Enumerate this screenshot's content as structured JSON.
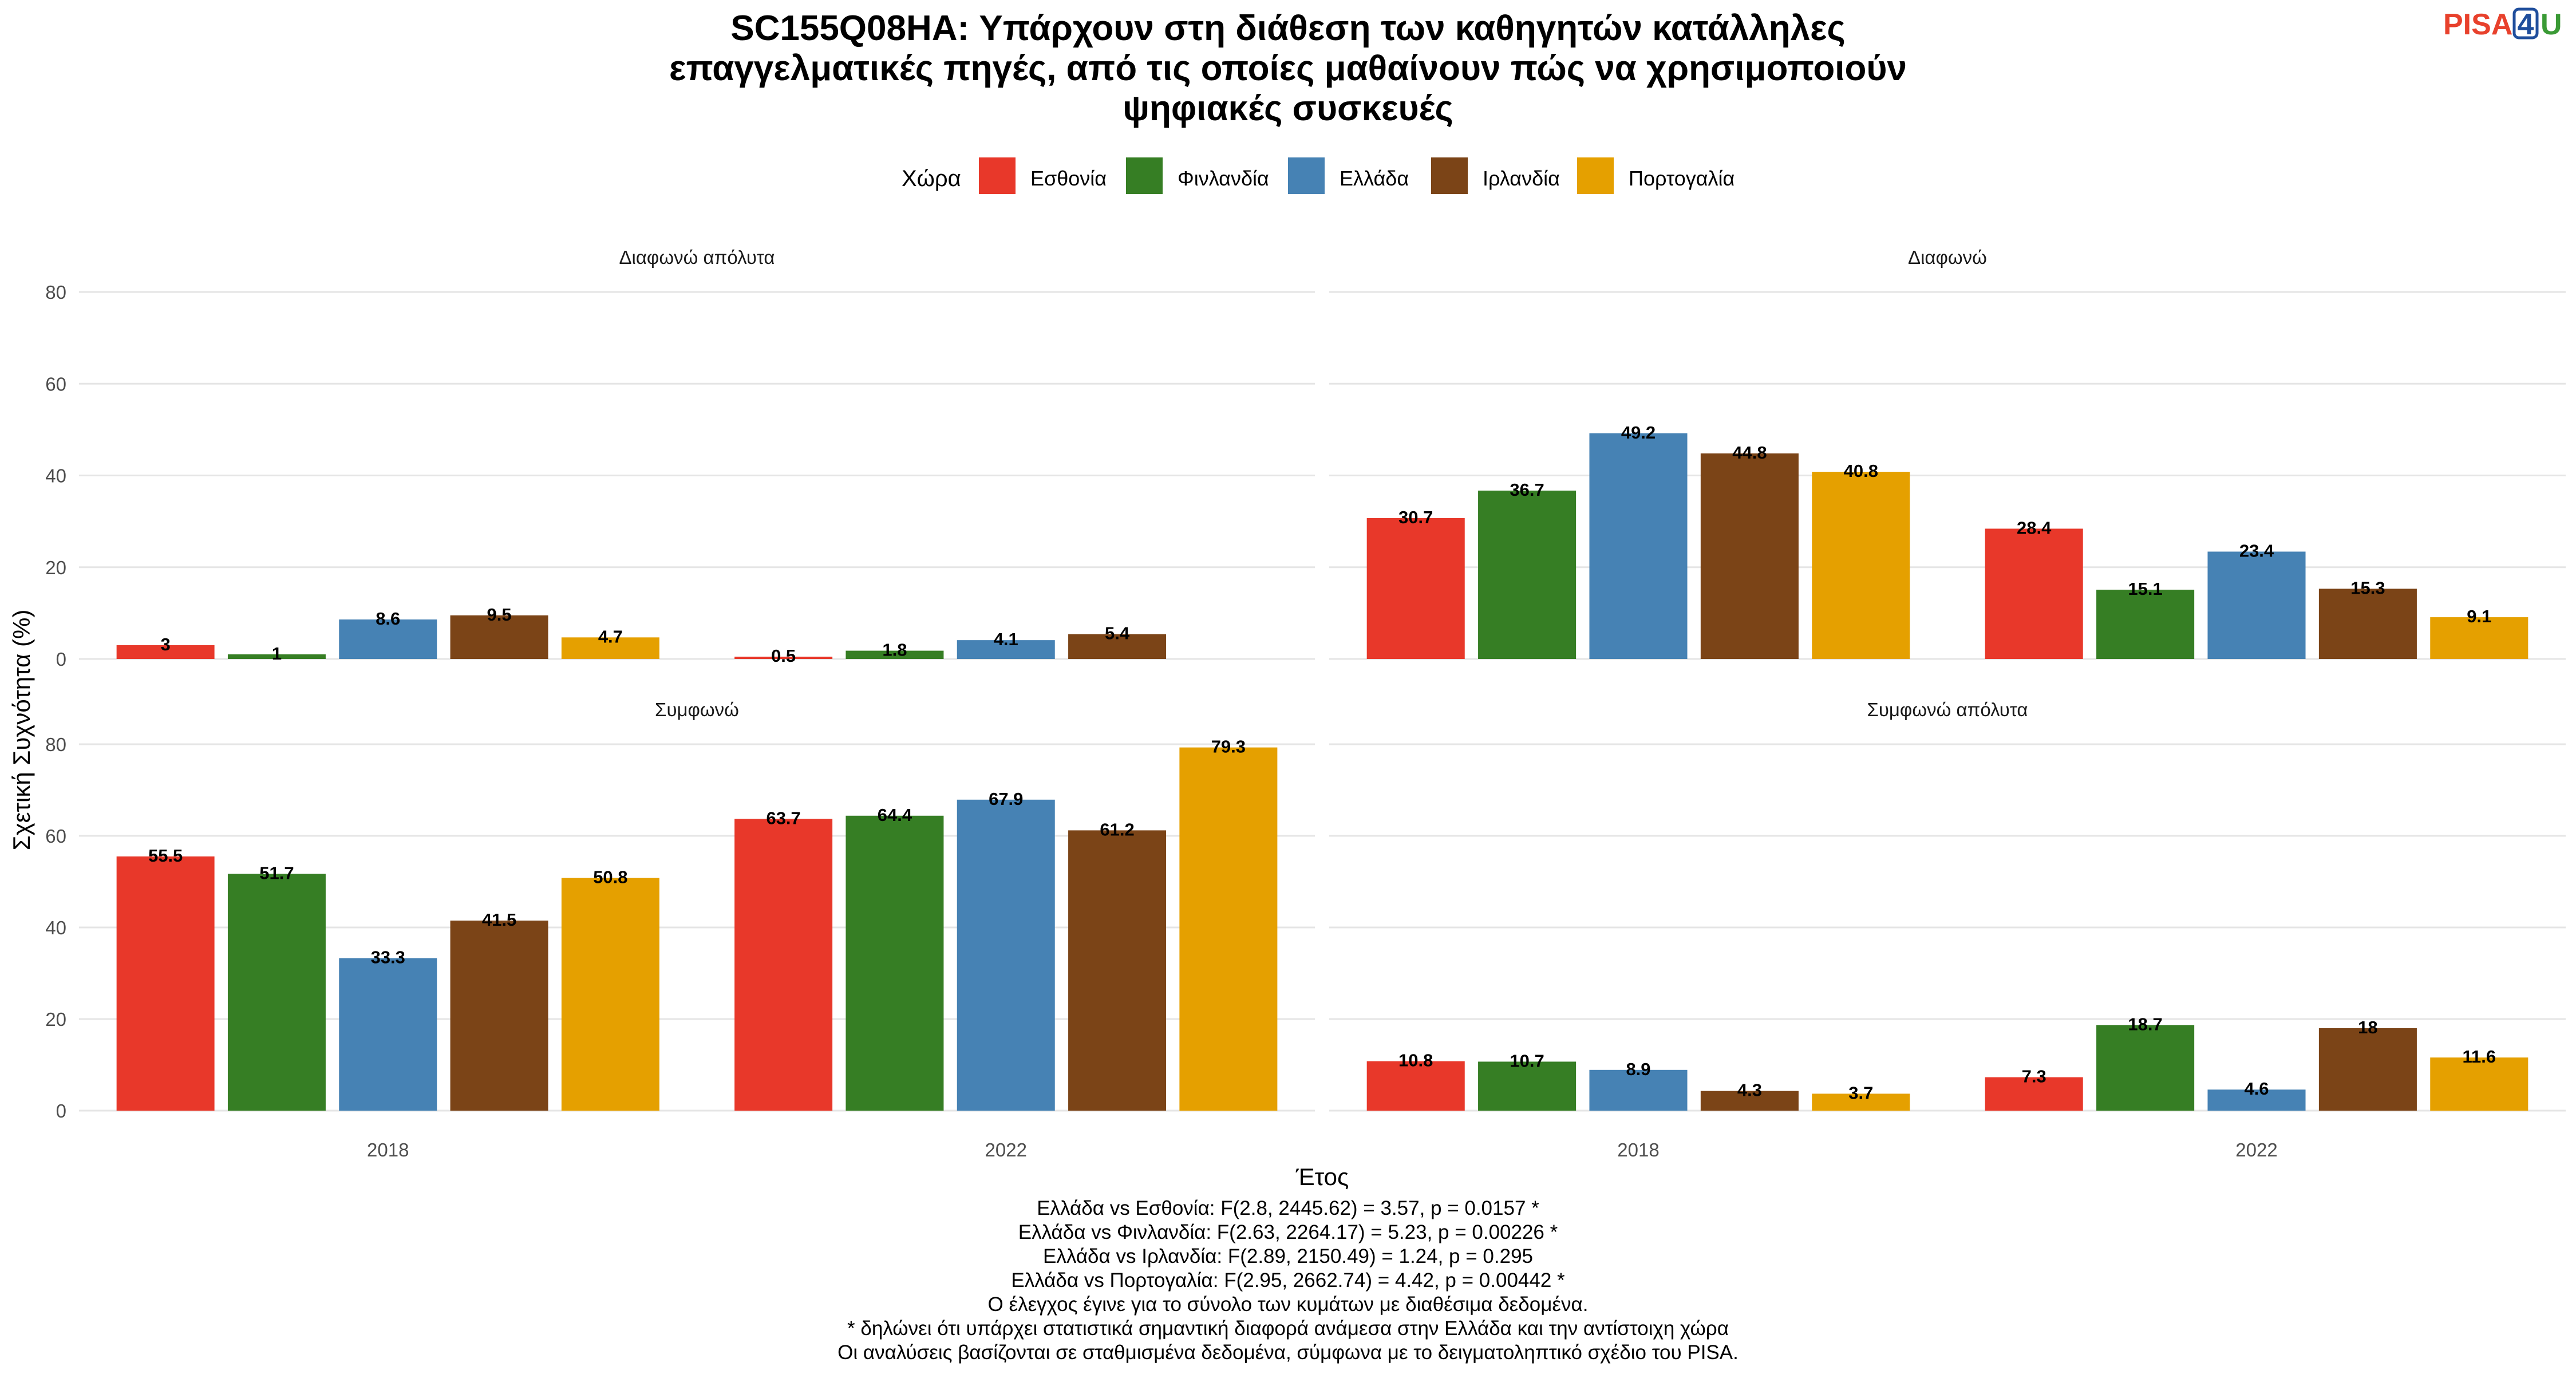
{
  "title_lines": [
    "SC155Q08HA: Υπάρχουν στη διάθεση των καθηγητών κατάλληλες",
    "επαγγελματικές πηγές, από τις οποίες μαθαίνουν πώς να χρησιμοποιούν",
    "ψηφιακές συσκευές"
  ],
  "logo": {
    "part1": "PISA",
    "part2": "4",
    "part3": "U",
    "colors": {
      "pisa": "#e8412c",
      "four": "#1f4e9c",
      "u": "#3a9a35"
    }
  },
  "legend": {
    "title": "Χώρα"
  },
  "caption_lines": [
    "Ελλάδα vs Εσθονία: F(2.8, 2445.62) = 3.57, p = 0.0157 *",
    "Ελλάδα vs Φινλανδία: F(2.63, 2264.17) = 5.23, p = 0.00226 *",
    "Ελλάδα vs Ιρλανδία: F(2.89, 2150.49) = 1.24, p = 0.295",
    "Ελλάδα vs Πορτογαλία: F(2.95, 2662.74) = 4.42, p = 0.00442 *",
    "Ο έλεγχος έγινε για το σύνολο των κυμάτων με διαθέσιμα δεδομένα.",
    "* δηλώνει ότι υπάρχει στατιστικά σημαντική διαφορά ανάμεσα στην Ελλάδα και την αντίστοιχη χώρα",
    "Οι αναλύσεις βασίζονται σε σταθμισμένα δεδομένα, σύμφωνα με το δειγματοληπτικό σχέδιο του PISA."
  ],
  "chart_data": {
    "type": "bar",
    "xlabel": "Έτος",
    "ylabel": "Σχετική Συχνότητα (%)",
    "ylim": [
      0,
      80
    ],
    "yticks": [
      0,
      20,
      40,
      60,
      80
    ],
    "grid": true,
    "legend_position": "top",
    "categories": [
      "2018",
      "2022"
    ],
    "series": [
      {
        "name": "Εσθονία",
        "color": "#e8382a"
      },
      {
        "name": "Φινλανδία",
        "color": "#367e24"
      },
      {
        "name": "Ελλάδα",
        "color": "#4682b4"
      },
      {
        "name": "Ιρλανδία",
        "color": "#7b4417"
      },
      {
        "name": "Πορτογαλία",
        "color": "#e5a000"
      }
    ],
    "facets": [
      {
        "title": "Διαφωνώ απόλυτα",
        "values": {
          "2018": [
            3,
            1,
            8.6,
            9.5,
            4.7
          ],
          "2022": [
            0.5,
            1.8,
            4.1,
            5.4,
            null
          ]
        },
        "labels": {
          "2018": [
            "3",
            "1",
            "8.6",
            "9.5",
            "4.7"
          ],
          "2022": [
            "0.5",
            "1.8",
            "4.1",
            "5.4",
            ""
          ]
        }
      },
      {
        "title": "Διαφωνώ",
        "values": {
          "2018": [
            30.7,
            36.7,
            49.2,
            44.8,
            40.8
          ],
          "2022": [
            28.4,
            15.1,
            23.4,
            15.3,
            9.1
          ]
        },
        "labels": {
          "2018": [
            "30.7",
            "36.7",
            "49.2",
            "44.8",
            "40.8"
          ],
          "2022": [
            "28.4",
            "15.1",
            "23.4",
            "15.3",
            "9.1"
          ]
        }
      },
      {
        "title": "Συμφωνώ",
        "values": {
          "2018": [
            55.5,
            51.7,
            33.3,
            41.5,
            50.8
          ],
          "2022": [
            63.7,
            64.4,
            67.9,
            61.2,
            79.3
          ]
        },
        "labels": {
          "2018": [
            "55.5",
            "51.7",
            "33.3",
            "41.5",
            "50.8"
          ],
          "2022": [
            "63.7",
            "64.4",
            "67.9",
            "61.2",
            "79.3"
          ]
        }
      },
      {
        "title": "Συμφωνώ απόλυτα",
        "values": {
          "2018": [
            10.8,
            10.7,
            8.9,
            4.3,
            3.7
          ],
          "2022": [
            7.3,
            18.7,
            4.6,
            18,
            11.6
          ]
        },
        "labels": {
          "2018": [
            "10.8",
            "10.7",
            "8.9",
            "4.3",
            "3.7"
          ],
          "2022": [
            "7.3",
            "18.7",
            "4.6",
            "18",
            "11.6"
          ]
        }
      }
    ]
  }
}
